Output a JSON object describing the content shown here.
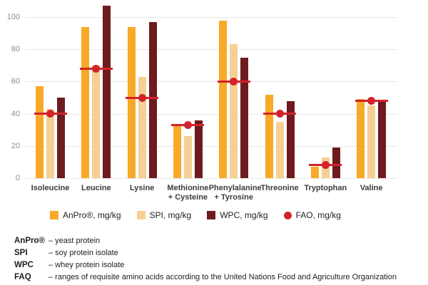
{
  "chart_data": {
    "type": "bar",
    "title": "",
    "xlabel": "",
    "ylabel": "",
    "ylim": [
      0,
      100
    ],
    "yticks": [
      0,
      20,
      40,
      60,
      80,
      100
    ],
    "grid": true,
    "legend_position": "bottom",
    "categories": [
      "Isoleucine",
      "Leucine",
      "Lysine",
      "Methionine\n+ Cysteine",
      "Phenylalanine\n+ Tyrosine",
      "Threonine",
      "Tryptophan",
      "Valine"
    ],
    "series": [
      {
        "name": "AnPro®, mg/kg",
        "color": "#F8A928",
        "values": [
          57,
          94,
          94,
          33,
          98,
          52,
          7,
          49
        ]
      },
      {
        "name": "SPI, mg/kg",
        "color": "#F6D092",
        "values": [
          43,
          70,
          63,
          26,
          83,
          35,
          13,
          45
        ]
      },
      {
        "name": "WPC, mg/kg",
        "color": "#6E1A1E",
        "values": [
          50,
          107,
          97,
          36,
          75,
          48,
          19,
          48
        ]
      }
    ],
    "fao": {
      "name": "FAO, mg/kg",
      "color": "#D2232A",
      "values": [
        40,
        68,
        50,
        33,
        60,
        40,
        8,
        48
      ]
    }
  },
  "colors": {
    "gridline": "#e7e7e7",
    "tick_text": "#8a8a8a",
    "category_text": "#3c3c3c"
  },
  "footnotes": [
    {
      "term": "AnPro®",
      "definition": "– yeast protein"
    },
    {
      "term": "SPI",
      "definition": "– soy protein isolate"
    },
    {
      "term": "WPC",
      "definition": "– whey protein isolate"
    },
    {
      "term": "FAQ",
      "definition": "– ranges of requisite amino acids according to the United Nations Food and Agriculture Organization"
    }
  ]
}
